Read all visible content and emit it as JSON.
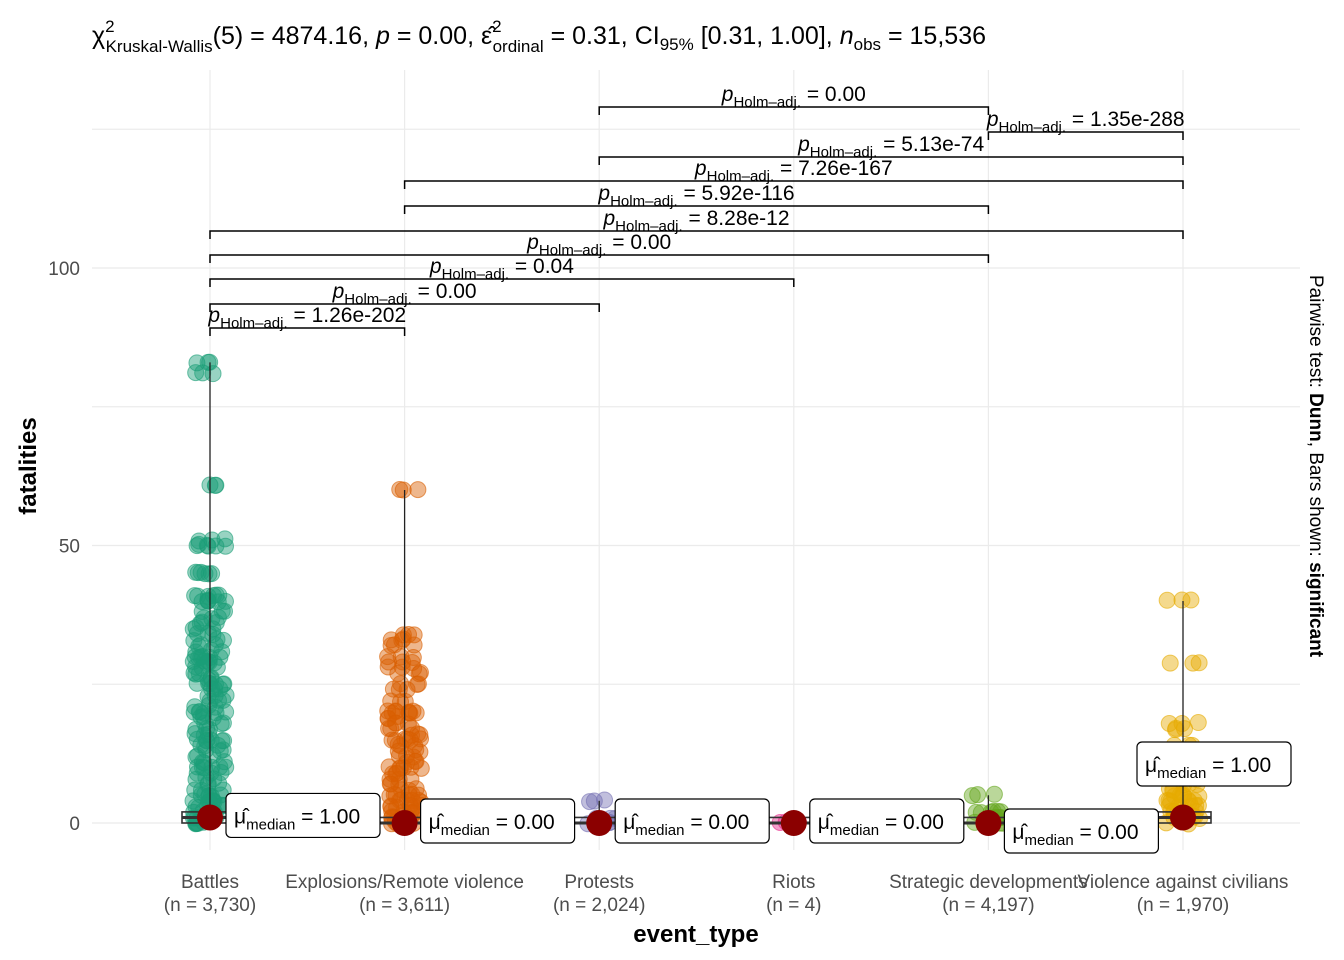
{
  "chart_data": {
    "type": "scatter",
    "subtitle": {
      "statistic": "4874.16",
      "df": "5",
      "p": "0.00",
      "effsize": "0.31",
      "ci": "[0.31, 1.00]",
      "n": "15,536"
    },
    "xlabel": "event_type",
    "ylabel": "fatalities",
    "caption_prefix": "Pairwise test: ",
    "caption_test": "Dunn",
    "caption_mid": ", Bars shown: ",
    "caption_bars": "significant",
    "ylim": [
      -5,
      130
    ],
    "yticks": [
      0,
      50,
      100
    ],
    "categories": [
      {
        "name": "Battles",
        "n": "(n = 3,730)",
        "color": "#1b9e77",
        "median": 1,
        "median_label": "1.00",
        "max": 83,
        "outliers": [
          83,
          81,
          61,
          51,
          50,
          50,
          45,
          45,
          41,
          41,
          40,
          40,
          38,
          37,
          36,
          35,
          34,
          33,
          32,
          31,
          30,
          30,
          29,
          29,
          28,
          27,
          26,
          25,
          25,
          24,
          23,
          22,
          21,
          20,
          20,
          19,
          18,
          17,
          16,
          15,
          15,
          14,
          13,
          12,
          11,
          10,
          10,
          9,
          8,
          7,
          6,
          5,
          5,
          4,
          4,
          3,
          3,
          2,
          2,
          1,
          1,
          0,
          0
        ]
      },
      {
        "name": "Explosions/Remote violence",
        "n": "(n = 3,611)",
        "color": "#d95f02",
        "median": 0,
        "median_label": "0.00",
        "max": 60,
        "outliers": [
          60,
          34,
          33,
          32,
          30,
          29,
          28,
          27,
          25,
          24,
          22,
          20,
          20,
          20,
          19,
          18,
          17,
          16,
          15,
          15,
          14,
          13,
          12,
          11,
          10,
          10,
          9,
          8,
          7,
          6,
          5,
          5,
          4,
          4,
          3,
          3,
          2,
          2,
          1,
          1,
          0,
          0
        ]
      },
      {
        "name": "Protests",
        "n": "(n = 2,024)",
        "color": "#7570b3",
        "median": 0,
        "median_label": "0.00",
        "max": 4,
        "outliers": [
          4,
          1,
          0,
          0
        ]
      },
      {
        "name": "Riots",
        "n": "(n = 4)",
        "color": "#e7298a",
        "median": 0,
        "median_label": "0.00",
        "max": 0,
        "outliers": [
          0
        ]
      },
      {
        "name": "Strategic developments",
        "n": "(n = 4,197)",
        "color": "#66a61e",
        "median": 0,
        "median_label": "0.00",
        "max": 5,
        "outliers": [
          5,
          2,
          2,
          1,
          1,
          0,
          0
        ]
      },
      {
        "name": "Violence against civilians",
        "n": "(n = 1,970)",
        "color": "#e6ab02",
        "median": 1,
        "median_label": "1.00",
        "max": 40,
        "outliers": [
          40,
          29,
          18,
          17,
          14,
          12,
          10,
          9,
          8,
          7,
          6,
          5,
          5,
          4,
          4,
          3,
          3,
          2,
          2,
          1,
          1,
          0
        ]
      }
    ],
    "comparisons": [
      {
        "from": 0,
        "to": 1,
        "label": "1.26e-202"
      },
      {
        "from": 0,
        "to": 2,
        "label": "0.00"
      },
      {
        "from": 0,
        "to": 3,
        "label": "0.04"
      },
      {
        "from": 0,
        "to": 4,
        "label": "0.00"
      },
      {
        "from": 0,
        "to": 5,
        "label": "8.28e-12"
      },
      {
        "from": 1,
        "to": 4,
        "label": "5.92e-116"
      },
      {
        "from": 1,
        "to": 5,
        "label": "7.26e-167"
      },
      {
        "from": 2,
        "to": 5,
        "label": "5.13e-74"
      },
      {
        "from": 4,
        "to": 5,
        "label": "1.35e-288"
      },
      {
        "from": 2,
        "to": 4,
        "label": "0.00"
      }
    ]
  }
}
